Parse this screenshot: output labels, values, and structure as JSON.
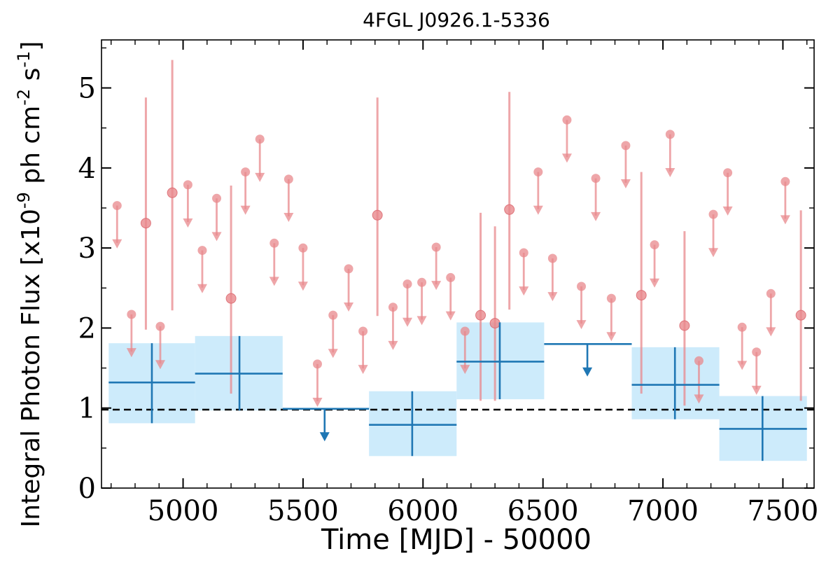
{
  "chart_data": {
    "type": "scatter",
    "title": "4FGL J0926.1-5336",
    "xlabel": "Time [MJD] - 50000",
    "ylabel": "Integral Photon Flux [x10^-9 ph cm^-2 s^-1]",
    "xlim": [
      4660,
      7630
    ],
    "ylim": [
      0,
      5.6
    ],
    "x_ticks": [
      "5000",
      "5500",
      "6000",
      "6500",
      "7000",
      "7500"
    ],
    "y_ticks": [
      "0",
      "1",
      "2",
      "3",
      "4",
      "5"
    ],
    "reference_line": 0.98,
    "grid": false,
    "colors": {
      "fine_bins": "#e8888c",
      "coarse_bins": "#1f77b4",
      "coarse_band": "#cdebfb",
      "reference_line": "#000000"
    },
    "series": [
      {
        "bins": "fine",
        "detections": [
          {
            "x": 4845,
            "y": 3.31,
            "lo": 1.98,
            "hi": 4.88
          },
          {
            "x": 4955,
            "y": 3.69,
            "lo": 2.22,
            "hi": 5.35
          },
          {
            "x": 5200,
            "y": 2.37,
            "lo": 1.18,
            "hi": 3.78
          },
          {
            "x": 5810,
            "y": 3.41,
            "lo": 2.15,
            "hi": 4.88
          },
          {
            "x": 6240,
            "y": 2.16,
            "lo": 1.09,
            "hi": 3.44
          },
          {
            "x": 6300,
            "y": 2.06,
            "lo": 1.09,
            "hi": 3.27
          },
          {
            "x": 6360,
            "y": 3.48,
            "lo": 2.23,
            "hi": 4.95
          },
          {
            "x": 6910,
            "y": 2.41,
            "lo": 1.18,
            "hi": 3.95
          },
          {
            "x": 7090,
            "y": 2.03,
            "lo": 1.03,
            "hi": 3.21
          },
          {
            "x": 7575,
            "y": 2.16,
            "lo": 1.09,
            "hi": 3.47
          }
        ],
        "upper_limits": [
          {
            "x": 4725,
            "y": 3.53
          },
          {
            "x": 4785,
            "y": 2.17
          },
          {
            "x": 4905,
            "y": 2.02
          },
          {
            "x": 5020,
            "y": 3.79
          },
          {
            "x": 5080,
            "y": 2.97
          },
          {
            "x": 5140,
            "y": 3.62
          },
          {
            "x": 5260,
            "y": 3.95
          },
          {
            "x": 5320,
            "y": 4.36
          },
          {
            "x": 5380,
            "y": 3.06
          },
          {
            "x": 5440,
            "y": 3.86
          },
          {
            "x": 5500,
            "y": 3.0
          },
          {
            "x": 5560,
            "y": 1.55
          },
          {
            "x": 5625,
            "y": 2.16
          },
          {
            "x": 5690,
            "y": 2.74
          },
          {
            "x": 5750,
            "y": 1.96
          },
          {
            "x": 5875,
            "y": 2.26
          },
          {
            "x": 5935,
            "y": 2.55
          },
          {
            "x": 5995,
            "y": 2.57
          },
          {
            "x": 6055,
            "y": 3.01
          },
          {
            "x": 6115,
            "y": 2.63
          },
          {
            "x": 6175,
            "y": 1.96
          },
          {
            "x": 6420,
            "y": 2.94
          },
          {
            "x": 6480,
            "y": 3.95
          },
          {
            "x": 6540,
            "y": 2.87
          },
          {
            "x": 6600,
            "y": 4.6
          },
          {
            "x": 6660,
            "y": 2.52
          },
          {
            "x": 6720,
            "y": 3.87
          },
          {
            "x": 6785,
            "y": 2.37
          },
          {
            "x": 6845,
            "y": 4.28
          },
          {
            "x": 6965,
            "y": 3.04
          },
          {
            "x": 7030,
            "y": 4.42
          },
          {
            "x": 7150,
            "y": 1.59
          },
          {
            "x": 7210,
            "y": 3.42
          },
          {
            "x": 7270,
            "y": 3.94
          },
          {
            "x": 7330,
            "y": 2.01
          },
          {
            "x": 7390,
            "y": 1.7
          },
          {
            "x": 7450,
            "y": 2.43
          },
          {
            "x": 7510,
            "y": 3.83
          }
        ]
      },
      {
        "bins": "coarse",
        "detections": [
          {
            "x0": 4690,
            "x1": 5050,
            "xc": 4870,
            "y": 1.32,
            "lo": 0.81,
            "hi": 1.81
          },
          {
            "x0": 5050,
            "x1": 5415,
            "xc": 5235,
            "y": 1.43,
            "lo": 0.97,
            "hi": 1.9
          },
          {
            "x0": 5775,
            "x1": 6140,
            "xc": 5955,
            "y": 0.79,
            "lo": 0.4,
            "hi": 1.21
          },
          {
            "x0": 6140,
            "x1": 6505,
            "xc": 6320,
            "y": 1.58,
            "lo": 1.11,
            "hi": 2.07
          },
          {
            "x0": 6870,
            "x1": 7235,
            "xc": 7050,
            "y": 1.29,
            "lo": 0.86,
            "hi": 1.76
          },
          {
            "x0": 7235,
            "x1": 7600,
            "xc": 7415,
            "y": 0.74,
            "lo": 0.34,
            "hi": 1.15
          }
        ],
        "upper_limits": [
          {
            "x0": 5415,
            "x1": 5775,
            "xc": 5590,
            "y": 0.99
          },
          {
            "x0": 6505,
            "x1": 6870,
            "xc": 6685,
            "y": 1.8
          }
        ]
      }
    ]
  }
}
